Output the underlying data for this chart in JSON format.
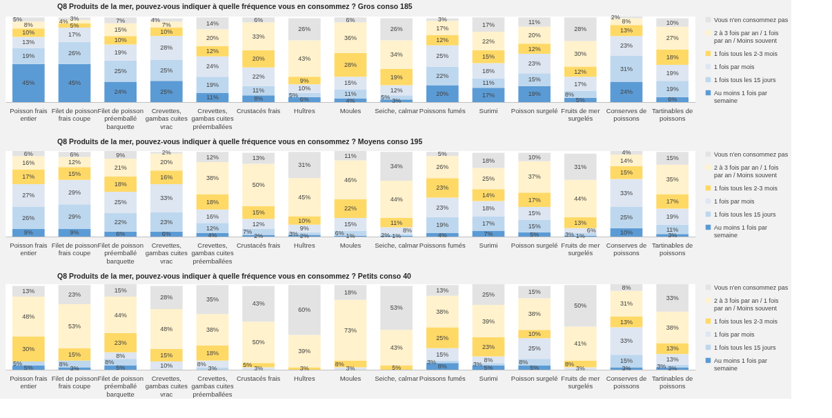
{
  "chart_data": [
    {
      "type": "bar",
      "title": "Q8 Produits de la mer, pouvez-vous indiquer à quelle fréquence vous en consommez ? Gros conso 185",
      "stacked": true,
      "legend": "right",
      "tick_labels": "x",
      "categories": [
        "Poisson frais entier",
        "Filet de poisson frais coupe",
        "Filet de poisson préemballé barquette",
        "Crevettes, gambas cuites vrac",
        "Crevettes, gambas cuites préemballées",
        "Crustacés frais",
        "Huîtres",
        "Moules",
        "Seiche, calmar",
        "Poissons fumés",
        "Surimi",
        "Poisson surgelé",
        "Fruits de mer surgelés",
        "Conserves de poissons",
        "Tartinables de poissons"
      ],
      "series": [
        {
          "name": "Au moins 1 fois par semaine",
          "color": "#5b9bd5",
          "values": [
            45,
            45,
            24,
            25,
            11,
            8,
            6,
            4,
            3,
            20,
            17,
            19,
            5,
            24,
            6
          ],
          "value_labels": [
            "45%",
            "45%",
            "24%",
            "25%",
            "11%",
            "8%",
            "6%",
            "4%",
            "3%",
            "20%",
            "17%",
            "19%",
            "5%",
            "24%",
            "6%"
          ]
        },
        {
          "name": "1 fois tous les 15 jours",
          "color": "#bdd7ee",
          "values": [
            19,
            26,
            25,
            25,
            19,
            11,
            5,
            11,
            5,
            22,
            11,
            15,
            8,
            31,
            19
          ],
          "value_labels": [
            "19%",
            "26%",
            "25%",
            "25%",
            "19%",
            "11%",
            "5%",
            "11%",
            "5%",
            "22%",
            "11%",
            "15%",
            "8%",
            "31%",
            "19%"
          ]
        },
        {
          "name": "1 fois par mois",
          "color": "#dee6f2",
          "values": [
            13,
            17,
            19,
            28,
            24,
            22,
            10,
            15,
            12,
            25,
            18,
            23,
            17,
            23,
            19
          ],
          "value_labels": [
            "13%",
            "17%",
            "19%",
            "28%",
            "24%",
            "22%",
            "10%",
            "15%",
            "12%",
            "25%",
            "18%",
            "23%",
            "17%",
            "23%",
            "19%"
          ]
        },
        {
          "name": "1 fois tous les 2-3 mois",
          "color": "#ffd966",
          "values": [
            10,
            5,
            10,
            10,
            12,
            20,
            9,
            28,
            19,
            12,
            15,
            12,
            12,
            13,
            18
          ],
          "value_labels": [
            "10%",
            "5%",
            "10%",
            "10%",
            "12%",
            "20%",
            "9%",
            "28%",
            "19%",
            "12%",
            "15%",
            "12%",
            "12%",
            "13%",
            "18%"
          ]
        },
        {
          "name": "2 à 3 fois par an / 1 fois par an / Moins souvent",
          "color": "#fff2cc",
          "values": [
            8,
            4,
            15,
            7,
            20,
            33,
            43,
            36,
            34,
            17,
            22,
            20,
            30,
            8,
            27
          ],
          "value_labels": [
            "8%",
            "4%",
            "15%",
            "7%",
            "20%",
            "33%",
            "43%",
            "36%",
            "34%",
            "17%",
            "22%",
            "20%",
            "30%",
            "8%",
            "27%"
          ]
        },
        {
          "name": "Vous n'en consommez pas",
          "color": "#e4e3e3",
          "values": [
            5,
            3,
            7,
            4,
            14,
            6,
            26,
            6,
            26,
            3,
            17,
            11,
            28,
            2,
            10
          ],
          "value_labels": [
            "5%",
            "3%",
            "7%",
            "4%",
            "14%",
            "6%",
            "26%",
            "6%",
            "26%",
            "3%",
            "17%",
            "11%",
            "28%",
            "2%",
            "10%"
          ]
        }
      ]
    },
    {
      "type": "bar",
      "title": "Q8 Produits de la mer, pouvez-vous indiquer à quelle fréquence vous en consommez ? Moyens conso 195",
      "stacked": true,
      "legend": "right",
      "tick_labels": "x",
      "categories": [
        "Poisson frais entier",
        "Filet de poisson frais coupe",
        "Filet de poisson préemballé barquette",
        "Crevettes, gambas cuites vrac",
        "Crevettes, gambas cuites préemballées",
        "Crustacés frais",
        "Huîtres",
        "Moules",
        "Seiche, calmar",
        "Poissons fumés",
        "Surimi",
        "Poisson surgelé",
        "Fruits de mer surgelés",
        "Conserves de poissons",
        "Tartinables de poissons"
      ],
      "series": [
        {
          "name": "Au moins 1 fois par semaine",
          "color": "#5b9bd5",
          "values": [
            9,
            9,
            6,
            6,
            4,
            2,
            2,
            1,
            1,
            4,
            7,
            5,
            1,
            10,
            3
          ],
          "value_labels": [
            "9%",
            "9%",
            "6%",
            "6%",
            "4%",
            "2%",
            "2%",
            "1%",
            "1%",
            "4%",
            "7%",
            "5%",
            "1%",
            "10%",
            "3%"
          ]
        },
        {
          "name": "1 fois tous les 15 jours",
          "color": "#bdd7ee",
          "values": [
            26,
            29,
            22,
            23,
            12,
            7,
            3,
            6,
            2,
            19,
            17,
            15,
            3,
            25,
            11
          ],
          "value_labels": [
            "26%",
            "29%",
            "22%",
            "23%",
            "12%",
            "7%",
            "3%",
            "6%",
            "2%",
            "19%",
            "17%",
            "15%",
            "3%",
            "25%",
            "11%"
          ]
        },
        {
          "name": "1 fois par mois",
          "color": "#dee6f2",
          "values": [
            27,
            29,
            25,
            33,
            16,
            12,
            9,
            15,
            8,
            23,
            18,
            15,
            6,
            33,
            19
          ],
          "value_labels": [
            "27%",
            "29%",
            "25%",
            "33%",
            "16%",
            "12%",
            "9%",
            "15%",
            "8%",
            "23%",
            "18%",
            "15%",
            "6%",
            "33%",
            "19%"
          ]
        },
        {
          "name": "1 fois tous les 2-3 mois",
          "color": "#ffd966",
          "values": [
            17,
            15,
            18,
            16,
            18,
            15,
            10,
            22,
            11,
            23,
            14,
            17,
            13,
            15,
            17
          ],
          "value_labels": [
            "17%",
            "15%",
            "18%",
            "16%",
            "18%",
            "15%",
            "10%",
            "22%",
            "11%",
            "23%",
            "14%",
            "17%",
            "13%",
            "15%",
            "17%"
          ]
        },
        {
          "name": "2 à 3 fois par an / 1 fois par an / Moins souvent",
          "color": "#fff2cc",
          "values": [
            16,
            12,
            21,
            20,
            38,
            50,
            45,
            46,
            44,
            26,
            25,
            37,
            44,
            14,
            35
          ],
          "value_labels": [
            "16%",
            "12%",
            "21%",
            "20%",
            "38%",
            "50%",
            "45%",
            "46%",
            "44%",
            "26%",
            "25%",
            "37%",
            "44%",
            "14%",
            "35%"
          ]
        },
        {
          "name": "Vous n'en consommez pas",
          "color": "#e4e3e3",
          "values": [
            6,
            6,
            9,
            2,
            12,
            13,
            31,
            11,
            34,
            5,
            18,
            10,
            31,
            4,
            15
          ],
          "value_labels": [
            "6%",
            "6%",
            "9%",
            "2%",
            "12%",
            "13%",
            "31%",
            "11%",
            "34%",
            "5%",
            "18%",
            "10%",
            "31%",
            "4%",
            "15%"
          ]
        }
      ]
    },
    {
      "type": "bar",
      "title": "Q8 Produits de la mer, pouvez-vous indiquer à quelle fréquence vous en consommez ? Petits conso 40",
      "stacked": true,
      "legend": "right",
      "tick_labels": "x",
      "categories": [
        "Poisson frais entier",
        "Filet de poisson frais coupe",
        "Filet de poisson préemballé barquette",
        "Crevettes, gambas cuites vrac",
        "Crevettes, gambas cuites préemballées",
        "Crustacés frais",
        "Huîtres",
        "Moules",
        "Seiche, calmar",
        "Poissons fumés",
        "Surimi",
        "Poisson surgelé",
        "Fruits de mer surgelés",
        "Conserves de poissons",
        "Tartinables de poissons"
      ],
      "series": [
        {
          "name": "Au moins 1 fois par semaine",
          "color": "#5b9bd5",
          "values": [
            5,
            3,
            5,
            null,
            null,
            null,
            null,
            null,
            null,
            8,
            5,
            5,
            null,
            3,
            3
          ],
          "value_labels": [
            "5%",
            "3%",
            "5%",
            null,
            null,
            null,
            null,
            null,
            null,
            "8%",
            "5%",
            "5%",
            null,
            "3%",
            "3%"
          ]
        },
        {
          "name": "1 fois tous les 15 jours",
          "color": "#bdd7ee",
          "values": [
            5,
            8,
            8,
            null,
            3,
            null,
            null,
            null,
            null,
            3,
            3,
            8,
            null,
            15,
            3
          ],
          "value_labels": [
            "5%",
            "8%",
            "8%",
            null,
            "3%",
            null,
            null,
            null,
            null,
            "3%",
            "3%",
            "8%",
            null,
            "15%",
            "3%"
          ]
        },
        {
          "name": "1 fois par mois",
          "color": "#dee6f2",
          "values": [
            null,
            null,
            8,
            10,
            8,
            3,
            null,
            3,
            null,
            15,
            8,
            25,
            3,
            33,
            13
          ],
          "value_labels": [
            null,
            null,
            "8%",
            "10%",
            "8%",
            "3%",
            null,
            "3%",
            null,
            "15%",
            "8%",
            "25%",
            "3%",
            "33%",
            "13%"
          ]
        },
        {
          "name": "1 fois tous les 2-3 mois",
          "color": "#ffd966",
          "values": [
            30,
            15,
            23,
            15,
            18,
            5,
            3,
            8,
            5,
            25,
            23,
            10,
            8,
            13,
            13
          ],
          "value_labels": [
            "30%",
            "15%",
            "23%",
            "15%",
            "18%",
            "5%",
            "3%",
            "8%",
            "5%",
            "25%",
            "23%",
            "10%",
            "8%",
            "13%",
            "13%"
          ]
        },
        {
          "name": "2 à 3 fois par an / 1 fois par an / Moins souvent",
          "color": "#fff2cc",
          "values": [
            48,
            53,
            44,
            48,
            38,
            50,
            39,
            73,
            43,
            38,
            39,
            38,
            41,
            31,
            38
          ],
          "value_labels": [
            "48%",
            "53%",
            "44%",
            "48%",
            "38%",
            "50%",
            "39%",
            "73%",
            "43%",
            "38%",
            "39%",
            "38%",
            "41%",
            "31%",
            "38%"
          ]
        },
        {
          "name": "Vous n'en consommez pas",
          "color": "#e4e3e3",
          "values": [
            13,
            23,
            15,
            28,
            35,
            43,
            60,
            18,
            53,
            13,
            25,
            15,
            50,
            8,
            33
          ],
          "value_labels": [
            "13%",
            "23%",
            "15%",
            "28%",
            "35%",
            "43%",
            "60%",
            "18%",
            "53%",
            "13%",
            "25%",
            "15%",
            "50%",
            "8%",
            "33%"
          ]
        }
      ]
    }
  ]
}
